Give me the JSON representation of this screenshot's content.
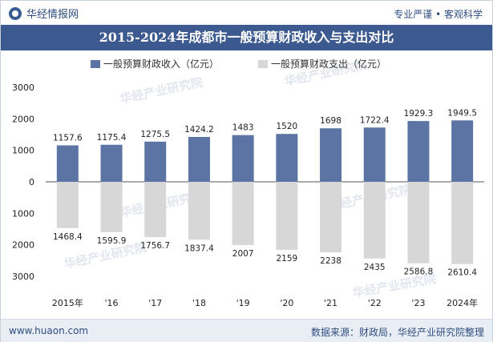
{
  "header": {
    "brand": "华经情报网",
    "tagline": "专业严谨 • 客观科学"
  },
  "footer": {
    "url": "www.huaon.com",
    "source": "数据来源：财政局，华经产业研究院整理"
  },
  "watermark": "华经产业研究院",
  "colors": {
    "revenue": "#5b74a4",
    "expenditure": "#d7d7d7",
    "title_bg": "#3c5a8f",
    "brand": "#2f4d80"
  },
  "chart_data": {
    "type": "bar",
    "title": "2015-2024年成都市一般预算财政收入与支出对比",
    "categories": [
      "2015年",
      "'16",
      "'17",
      "'18",
      "'19",
      "'20",
      "'21",
      "'22",
      "'23",
      "2024年"
    ],
    "series": [
      {
        "name": "一般预算财政收入（亿元）",
        "values": [
          1157.6,
          1175.4,
          1275.5,
          1424.2,
          1483,
          1520,
          1698,
          1722.4,
          1929.3,
          1949.5
        ],
        "labels": [
          "1157.6",
          "1175.4",
          "1275.5",
          "1424.2",
          "1483",
          "1520",
          "1698",
          "1722.4",
          "1929.3",
          "1949.5"
        ]
      },
      {
        "name": "一般预算财政支出（亿元）",
        "values": [
          -1468.4,
          -1595.9,
          -1756.7,
          -1837.4,
          -2007,
          -2159,
          -2238,
          -2435,
          -2586.8,
          -2610.4
        ],
        "labels": [
          "1468.4",
          "1595.9",
          "1756.7",
          "1837.4",
          "2007",
          "2159",
          "2238",
          "2435",
          "2586.8",
          "2610.4"
        ]
      }
    ],
    "ylim": [
      -3000,
      3000
    ],
    "yticks": [
      3000,
      2000,
      1000,
      0,
      -1000,
      -2000,
      -3000
    ],
    "ytick_labels": [
      "3000",
      "2000",
      "1000",
      "0",
      "1000",
      "2000",
      "3000"
    ],
    "legend_position": "top",
    "grid": false
  }
}
